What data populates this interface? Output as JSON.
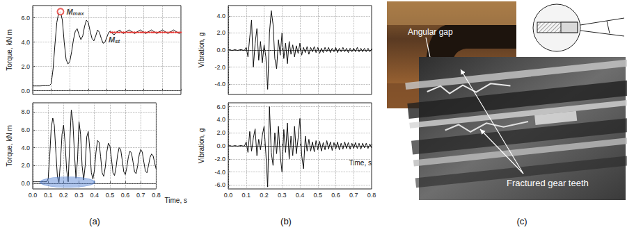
{
  "chart_data": [
    {
      "type": "line",
      "ylabel": "Torque, kN m",
      "tick_labels": "y",
      "grid": true,
      "xlim": [
        0,
        0.8
      ],
      "xticks": [
        {
          "value": 0,
          "label": "0.0"
        },
        0.1,
        0.2,
        0.3,
        0.4,
        0.5,
        0.6,
        0.7,
        0.8
      ],
      "ylim": [
        -0.3,
        7
      ],
      "yticks": [
        {
          "value": 0,
          "label": "0.0"
        },
        {
          "value": 2,
          "label": "2.0"
        },
        {
          "value": 4,
          "label": "4.0"
        },
        {
          "value": 6,
          "label": "6.0"
        }
      ],
      "x": [
        0,
        0.01,
        0.02,
        0.03,
        0.04,
        0.05,
        0.06,
        0.07,
        0.08,
        0.09,
        0.1,
        0.11,
        0.12,
        0.13,
        0.14,
        0.15,
        0.16,
        0.17,
        0.18,
        0.19,
        0.2,
        0.21,
        0.22,
        0.23,
        0.24,
        0.25,
        0.26,
        0.27,
        0.28,
        0.29,
        0.3,
        0.31,
        0.32,
        0.33,
        0.34,
        0.35,
        0.36,
        0.37,
        0.38,
        0.39,
        0.4,
        0.41,
        0.42,
        0.43,
        0.44,
        0.45,
        0.46,
        0.47,
        0.48,
        0.49,
        0.5,
        0.51,
        0.52,
        0.53,
        0.54,
        0.55,
        0.56,
        0.57,
        0.58,
        0.59,
        0.6,
        0.61,
        0.62,
        0.63,
        0.64,
        0.65,
        0.66,
        0.67,
        0.68,
        0.69,
        0.7,
        0.71,
        0.72,
        0.73,
        0.74,
        0.75,
        0.76,
        0.77,
        0.78,
        0.79,
        0.8
      ],
      "series": [
        {
          "color": "#111111",
          "line_style": "solid",
          "marker": "none",
          "values": [
            0.4,
            0.4,
            0.4,
            0.4,
            0.4,
            0.41,
            0.42,
            0.42,
            0.42,
            0.43,
            0.6,
            1.8,
            3.8,
            5.6,
            6.4,
            6.5,
            5.8,
            4.0,
            2.6,
            2.2,
            2.4,
            3.2,
            4.2,
            4.9,
            5.1,
            4.6,
            4.2,
            4.5,
            5.3,
            5.8,
            5.6,
            4.9,
            4.3,
            4.1,
            4.5,
            5.0,
            4.8,
            4.3,
            3.9,
            4.0,
            4.4,
            4.8,
            4.9,
            4.7,
            4.6,
            4.8,
            4.9,
            5.0,
            4.8,
            4.7,
            4.8,
            4.9,
            5.0,
            4.9,
            4.8,
            4.7,
            4.8,
            4.9,
            5.0,
            4.9,
            4.8,
            4.7,
            4.8,
            4.9,
            5.0,
            4.9,
            4.8,
            4.7,
            4.8,
            4.9,
            5.0,
            4.9,
            4.8,
            4.7,
            4.8,
            4.9,
            5.0,
            4.9,
            4.8,
            4.7,
            4.8
          ]
        },
        {
          "color": "#e53935",
          "line_style": "dashed",
          "marker": "circle",
          "values": [
            null,
            null,
            null,
            null,
            null,
            null,
            null,
            null,
            null,
            null,
            null,
            null,
            null,
            null,
            null,
            null,
            null,
            null,
            null,
            null,
            null,
            null,
            null,
            null,
            null,
            null,
            null,
            null,
            null,
            null,
            null,
            null,
            null,
            null,
            null,
            null,
            null,
            null,
            null,
            null,
            null,
            null,
            4.8,
            4.8,
            4.8,
            4.8,
            4.8,
            4.8,
            4.8,
            4.8,
            4.8,
            4.8,
            4.8,
            4.8,
            4.8,
            4.8,
            4.8,
            4.8,
            4.8,
            4.8,
            4.8,
            4.8,
            4.8,
            4.8,
            4.8,
            4.8,
            4.8,
            4.8,
            4.8,
            4.8,
            4.8,
            4.8,
            4.8,
            4.8,
            4.8,
            4.8,
            4.8,
            4.8,
            4.8,
            4.8,
            4.8
          ]
        }
      ],
      "annotations": [
        {
          "text": "M",
          "subscript": "max",
          "x": 0.15,
          "y": 6.5,
          "marker": "circle",
          "color": "#e53935"
        },
        {
          "text": "M",
          "subscript": "st",
          "x": 0.44,
          "y": 4.8,
          "marker": "none",
          "color": "#111111"
        }
      ]
    },
    {
      "type": "line",
      "xlabel": "Time, s",
      "ylabel": "Torque, kN m",
      "grid": true,
      "xlim": [
        0,
        0.8
      ],
      "xticks": [
        {
          "value": 0,
          "label": "0.0"
        },
        0.1,
        0.2,
        0.3,
        0.4,
        0.5,
        0.6,
        0.7,
        0.8
      ],
      "ylim": [
        -0.6,
        9
      ],
      "yticks": [
        {
          "value": 0,
          "label": "0.0"
        },
        {
          "value": 2,
          "label": "2.0"
        },
        {
          "value": 4,
          "label": "4.0"
        },
        {
          "value": 6,
          "label": "6.0"
        },
        {
          "value": 8,
          "label": "8.0"
        }
      ],
      "x": [
        0,
        0.01,
        0.02,
        0.03,
        0.04,
        0.05,
        0.06,
        0.07,
        0.08,
        0.09,
        0.1,
        0.11,
        0.12,
        0.13,
        0.14,
        0.15,
        0.16,
        0.17,
        0.18,
        0.19,
        0.2,
        0.21,
        0.22,
        0.23,
        0.24,
        0.25,
        0.26,
        0.27,
        0.28,
        0.29,
        0.3,
        0.31,
        0.32,
        0.33,
        0.34,
        0.35,
        0.36,
        0.37,
        0.38,
        0.39,
        0.4,
        0.41,
        0.42,
        0.43,
        0.44,
        0.45,
        0.46,
        0.47,
        0.48,
        0.49,
        0.5,
        0.51,
        0.52,
        0.53,
        0.54,
        0.55,
        0.56,
        0.57,
        0.58,
        0.59,
        0.6,
        0.61,
        0.62,
        0.63,
        0.64,
        0.65,
        0.66,
        0.67,
        0.68,
        0.69,
        0.7,
        0.71,
        0.72,
        0.73,
        0.74,
        0.75,
        0.76,
        0.77,
        0.78,
        0.79,
        0.8
      ],
      "series": [
        {
          "color": "#111111",
          "line_style": "solid",
          "marker": "none",
          "values": [
            0.2,
            0.2,
            0.2,
            0.2,
            0.2,
            0.2,
            0.2,
            0.2,
            0.2,
            0.2,
            0.5,
            3.0,
            6.2,
            7.3,
            6.5,
            3.5,
            0.8,
            0.1,
            2.5,
            5.5,
            6.5,
            4.5,
            1.5,
            0.2,
            4.5,
            8.2,
            7.0,
            3.5,
            0.6,
            2.5,
            6.9,
            5.5,
            2.0,
            0.4,
            2.0,
            5.2,
            5.8,
            3.8,
            1.2,
            0.5,
            1.5,
            3.5,
            4.8,
            4.6,
            3.0,
            1.2,
            0.8,
            1.8,
            3.5,
            4.5,
            4.2,
            2.8,
            1.2,
            0.9,
            1.8,
            3.2,
            4.0,
            3.8,
            2.6,
            1.3,
            1.0,
            1.8,
            3.0,
            3.6,
            3.4,
            2.4,
            1.3,
            1.1,
            2.0,
            3.2,
            3.8,
            3.5,
            2.4,
            1.4,
            1.2,
            2.0,
            2.9,
            3.3,
            3.1,
            2.3,
            1.6
          ]
        }
      ],
      "highlight": {
        "x": [
          0.05,
          0.4
        ],
        "y": [
          -0.45,
          0.75
        ],
        "color": "#4a7bd0"
      }
    },
    {
      "type": "line",
      "ylabel": "Vibration, g",
      "tick_labels": "y",
      "grid": true,
      "xlim": [
        0,
        0.8
      ],
      "xticks": [
        {
          "value": 0,
          "label": "0.0"
        },
        0.1,
        0.2,
        0.3,
        0.4,
        0.5,
        0.6,
        0.7,
        0.8
      ],
      "ylim": [
        -5.2,
        5.2
      ],
      "yticks": [
        {
          "value": -4,
          "label": "-4.0"
        },
        {
          "value": -2,
          "label": "-2.0"
        },
        {
          "value": 0,
          "label": "0.0"
        },
        {
          "value": 2,
          "label": "2.0"
        },
        {
          "value": 4,
          "label": "4.0"
        }
      ],
      "x": [
        0,
        0.01,
        0.02,
        0.03,
        0.04,
        0.05,
        0.06,
        0.07,
        0.08,
        0.09,
        0.1,
        0.11,
        0.12,
        0.13,
        0.14,
        0.15,
        0.16,
        0.17,
        0.18,
        0.19,
        0.2,
        0.21,
        0.22,
        0.23,
        0.24,
        0.25,
        0.26,
        0.27,
        0.28,
        0.29,
        0.3,
        0.31,
        0.32,
        0.33,
        0.34,
        0.35,
        0.36,
        0.37,
        0.38,
        0.39,
        0.4,
        0.41,
        0.42,
        0.43,
        0.44,
        0.45,
        0.46,
        0.47,
        0.48,
        0.49,
        0.5,
        0.51,
        0.52,
        0.53,
        0.54,
        0.55,
        0.56,
        0.57,
        0.58,
        0.59,
        0.6,
        0.61,
        0.62,
        0.63,
        0.64,
        0.65,
        0.66,
        0.67,
        0.68,
        0.69,
        0.7,
        0.71,
        0.72,
        0.73,
        0.74,
        0.75,
        0.76,
        0.77,
        0.78,
        0.79,
        0.8
      ],
      "series": [
        {
          "color": "#111111",
          "line_style": "solid",
          "marker": "none",
          "values": [
            0,
            0.05,
            -0.05,
            0,
            0.05,
            -0.05,
            0,
            0.05,
            0,
            -0.05,
            0.3,
            -0.8,
            1.5,
            3.5,
            -2.0,
            0.8,
            2.5,
            -1.2,
            1.0,
            -1.5,
            0.6,
            -0.8,
            -4.6,
            2.0,
            4.6,
            3.0,
            -1.0,
            -2.2,
            1.2,
            -0.6,
            2.0,
            -1.0,
            0.8,
            -1.6,
            1.0,
            -0.5,
            0.6,
            -0.8,
            0.5,
            -0.4,
            0.8,
            -0.6,
            0.3,
            -0.3,
            0.4,
            -0.5,
            0.3,
            -0.2,
            0.4,
            -0.3,
            0.3,
            -0.4,
            0.2,
            -0.3,
            0.3,
            -0.2,
            0.3,
            -0.3,
            0.2,
            -0.2,
            0.3,
            -0.3,
            0.2,
            -0.2,
            0.3,
            -0.2,
            0.2,
            -0.3,
            0.2,
            -0.2,
            0.2,
            -0.2,
            0.3,
            -0.2,
            0.2,
            -0.2,
            0.2,
            -0.2,
            0.2,
            -0.2,
            0.1
          ]
        }
      ]
    },
    {
      "type": "line",
      "xlabel": "Time, s",
      "ylabel": "Vibration, g",
      "grid": true,
      "xlim": [
        0,
        0.8
      ],
      "xticks": [
        {
          "value": 0,
          "label": "0.0"
        },
        0.1,
        0.2,
        0.3,
        0.4,
        0.5,
        0.6,
        0.7,
        0.8
      ],
      "ylim": [
        -6.6,
        6.6
      ],
      "yticks": [
        {
          "value": -6,
          "label": "-6.0"
        },
        {
          "value": -4,
          "label": "-4.0"
        },
        {
          "value": -2,
          "label": "-2.0"
        },
        {
          "value": 0,
          "label": "0.0"
        },
        {
          "value": 2,
          "label": "2.0"
        },
        {
          "value": 4,
          "label": "4.0"
        },
        {
          "value": 6,
          "label": "6.0"
        }
      ],
      "x": [
        0,
        0.01,
        0.02,
        0.03,
        0.04,
        0.05,
        0.06,
        0.07,
        0.08,
        0.09,
        0.1,
        0.11,
        0.12,
        0.13,
        0.14,
        0.15,
        0.16,
        0.17,
        0.18,
        0.19,
        0.2,
        0.21,
        0.22,
        0.23,
        0.24,
        0.25,
        0.26,
        0.27,
        0.28,
        0.29,
        0.3,
        0.31,
        0.32,
        0.33,
        0.34,
        0.35,
        0.36,
        0.37,
        0.38,
        0.39,
        0.4,
        0.41,
        0.42,
        0.43,
        0.44,
        0.45,
        0.46,
        0.47,
        0.48,
        0.49,
        0.5,
        0.51,
        0.52,
        0.53,
        0.54,
        0.55,
        0.56,
        0.57,
        0.58,
        0.59,
        0.6,
        0.61,
        0.62,
        0.63,
        0.64,
        0.65,
        0.66,
        0.67,
        0.68,
        0.69,
        0.7,
        0.71,
        0.72,
        0.73,
        0.74,
        0.75,
        0.76,
        0.77,
        0.78,
        0.79,
        0.8
      ],
      "series": [
        {
          "color": "#111111",
          "line_style": "solid",
          "marker": "none",
          "values": [
            0,
            0.05,
            -0.05,
            0,
            0.05,
            -0.05,
            0,
            0.05,
            0,
            -0.05,
            0.6,
            -1.0,
            2.2,
            -0.8,
            1.2,
            2.6,
            -1.5,
            1.0,
            -0.6,
            1.6,
            3.0,
            -1.2,
            -6.3,
            6.0,
            -1.0,
            -3.0,
            2.0,
            -1.2,
            3.0,
            -1.5,
            -4.0,
            2.5,
            -1.0,
            3.5,
            -2.0,
            1.5,
            -1.5,
            3.0,
            -1.2,
            1.2,
            4.2,
            -1.5,
            -3.5,
            1.5,
            -0.8,
            1.0,
            -0.8,
            0.6,
            -0.9,
            0.8,
            -0.6,
            0.7,
            -0.8,
            0.5,
            -0.6,
            0.8,
            -0.5,
            0.6,
            -0.7,
            0.5,
            -0.5,
            0.6,
            -0.6,
            0.4,
            -0.5,
            0.6,
            -0.4,
            0.5,
            -0.5,
            0.4,
            -0.4,
            0.5,
            -0.4,
            0.4,
            -0.5,
            0.4,
            -0.3,
            0.4,
            -0.4,
            0.3,
            -0.3
          ]
        }
      ]
    }
  ],
  "panel_labels": [
    "(a)",
    "(b)",
    "(c)"
  ],
  "photo_texts": {
    "angular_gap": "Angular gap",
    "fractured_teeth": "Fractured gear teeth"
  }
}
